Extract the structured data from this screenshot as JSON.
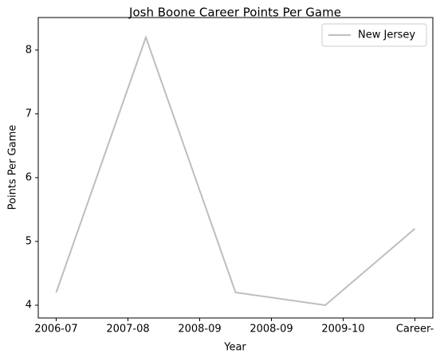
{
  "chart_data": {
    "type": "line",
    "title": "Josh Boone  Career Points Per Game",
    "xlabel": "Year",
    "ylabel": "Points Per Game",
    "x": [
      0,
      1,
      2,
      3,
      4
    ],
    "series": [
      {
        "name": "New Jersey",
        "color": "#bebebe",
        "values": [
          4.2,
          8.2,
          4.2,
          4.0,
          5.2
        ]
      }
    ],
    "xlim": [
      -0.2,
      4.2
    ],
    "xticks": [
      {
        "value": 0,
        "label": "2006-07"
      },
      {
        "value": 0.8,
        "label": "2007-08"
      },
      {
        "value": 1.6,
        "label": "2008-09"
      },
      {
        "value": 2.4,
        "label": "2008-09"
      },
      {
        "value": 3.2,
        "label": "2009-10"
      },
      {
        "value": 4.0,
        "label": "Career-"
      }
    ],
    "ylim": [
      3.8,
      8.51
    ],
    "yticks": [
      4,
      5,
      6,
      7,
      8
    ],
    "legend": "upper right",
    "grid": false
  }
}
